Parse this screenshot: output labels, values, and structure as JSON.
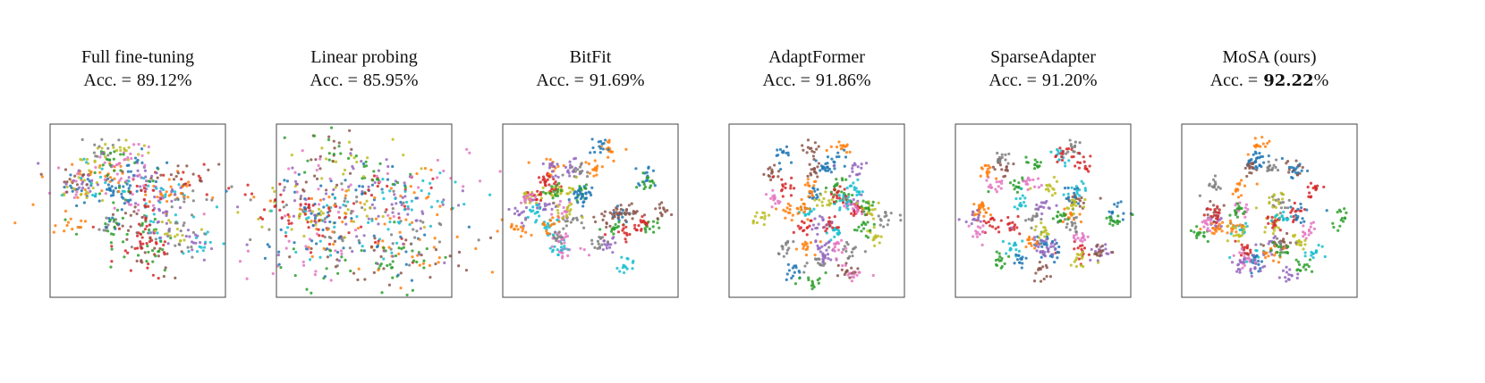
{
  "figure": {
    "palette": [
      "#1f77b4",
      "#ff7f0e",
      "#2ca02c",
      "#d62728",
      "#9467bd",
      "#8c564b",
      "#e377c2",
      "#7f7f7f",
      "#bcbd22",
      "#17becf"
    ],
    "panels": [
      {
        "title": "Full fine-tuning",
        "acc_label": "Acc. =",
        "acc_value": "89.12",
        "acc_unit": "%",
        "bold": false
      },
      {
        "title": "Linear probing",
        "acc_label": "Acc. =",
        "acc_value": "85.95",
        "acc_unit": "%",
        "bold": false
      },
      {
        "title": "BitFit",
        "acc_label": "Acc. =",
        "acc_value": "91.69",
        "acc_unit": "%",
        "bold": false
      },
      {
        "title": "AdaptFormer",
        "acc_label": "Acc. =",
        "acc_value": "91.86",
        "acc_unit": "%",
        "bold": false
      },
      {
        "title": "SparseAdapter",
        "acc_label": "Acc. =",
        "acc_value": "91.20",
        "acc_unit": "%",
        "bold": false
      },
      {
        "title": "MoSA (ours)",
        "acc_label": "Acc. =",
        "acc_value": "92.22",
        "acc_unit": "%",
        "bold": true
      }
    ]
  }
}
